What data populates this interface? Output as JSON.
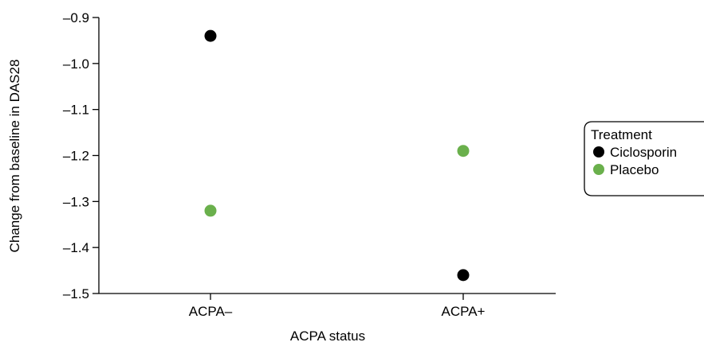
{
  "chart_data": {
    "type": "scatter",
    "categories": [
      "ACPA–",
      "ACPA+"
    ],
    "series": [
      {
        "name": "Ciclosporin",
        "color": "#000000",
        "values": [
          -0.94,
          -1.46
        ]
      },
      {
        "name": "Placebo",
        "color": "#6ab04c",
        "values": [
          -1.32,
          -1.19
        ]
      }
    ],
    "xlabel": "ACPA status",
    "ylabel": "Change from baseline in DAS28",
    "ylim": [
      -1.5,
      -0.9
    ],
    "yticks": [
      -0.9,
      -1.0,
      -1.1,
      -1.2,
      -1.3,
      -1.4,
      -1.5
    ],
    "ytick_labels": [
      "–0.9",
      "–1.0",
      "–1.1",
      "–1.2",
      "–1.3",
      "–1.4",
      "–1.5"
    ],
    "legend": {
      "title": "Treatment",
      "position": "right"
    },
    "grid": false
  }
}
